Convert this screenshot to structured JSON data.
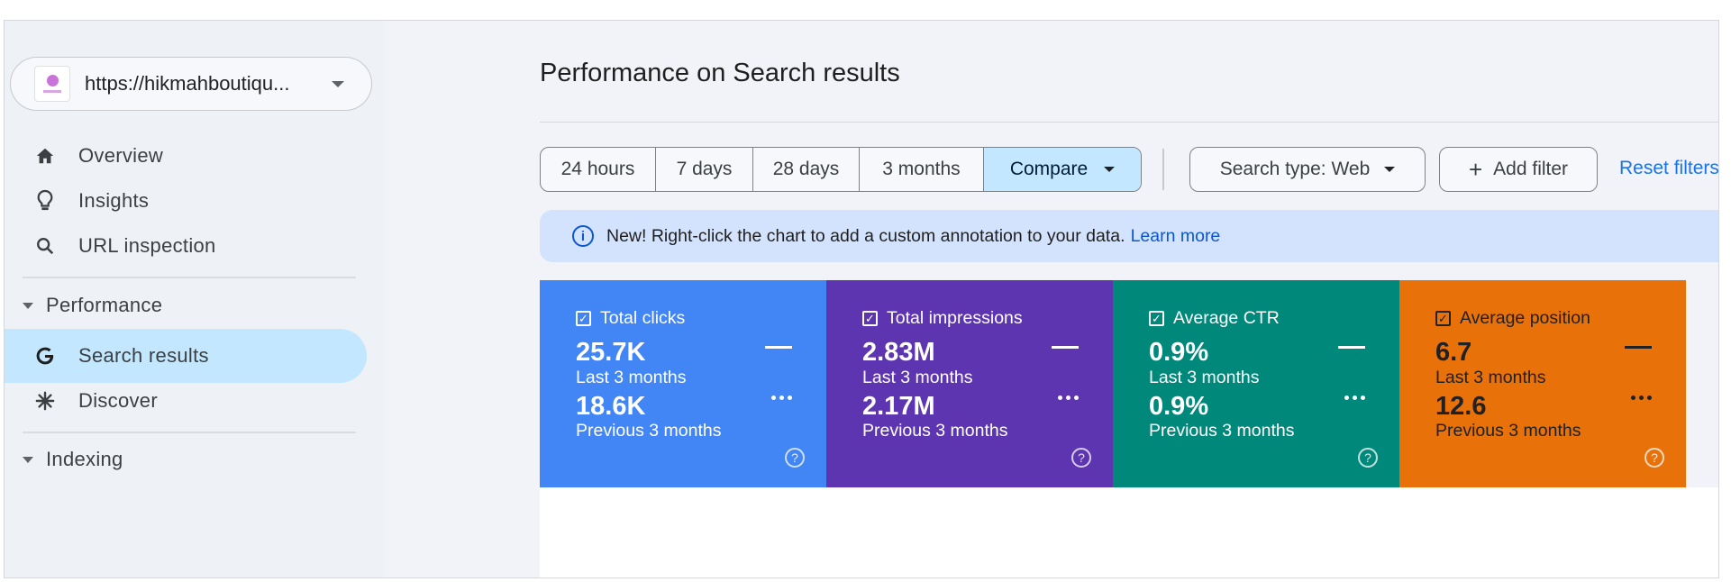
{
  "sidebar": {
    "property_url": "https://hikmahboutiqu...",
    "nav": [
      {
        "label": "Overview",
        "icon": "home-icon"
      },
      {
        "label": "Insights",
        "icon": "lightbulb-icon"
      },
      {
        "label": "URL inspection",
        "icon": "search-icon"
      }
    ],
    "performance_section": "Performance",
    "performance_items": [
      {
        "label": "Search results",
        "icon": "google-g-icon",
        "active": true
      },
      {
        "label": "Discover",
        "icon": "asterisk-icon"
      }
    ],
    "indexing_section": "Indexing"
  },
  "main": {
    "title": "Performance on Search results",
    "date_ranges": [
      "24 hours",
      "7 days",
      "28 days",
      "3 months"
    ],
    "compare_label": "Compare",
    "search_type": "Search type: Web",
    "add_filter": "Add filter",
    "reset_filters": "Reset filters",
    "banner": {
      "message": "New! Right-click the chart to add a custom annotation to your data.",
      "link": "Learn more"
    },
    "period_current": "Last 3 months",
    "period_previous": "Previous 3 months",
    "metrics": [
      {
        "name": "Total clicks",
        "current": "25.7K",
        "previous": "18.6K",
        "color": "#4285f4"
      },
      {
        "name": "Total impressions",
        "current": "2.83M",
        "previous": "2.17M",
        "color": "#5e35b1"
      },
      {
        "name": "Average CTR",
        "current": "0.9%",
        "previous": "0.9%",
        "color": "#00897b"
      },
      {
        "name": "Average position",
        "current": "6.7",
        "previous": "12.6",
        "color": "#e8710a"
      }
    ]
  }
}
